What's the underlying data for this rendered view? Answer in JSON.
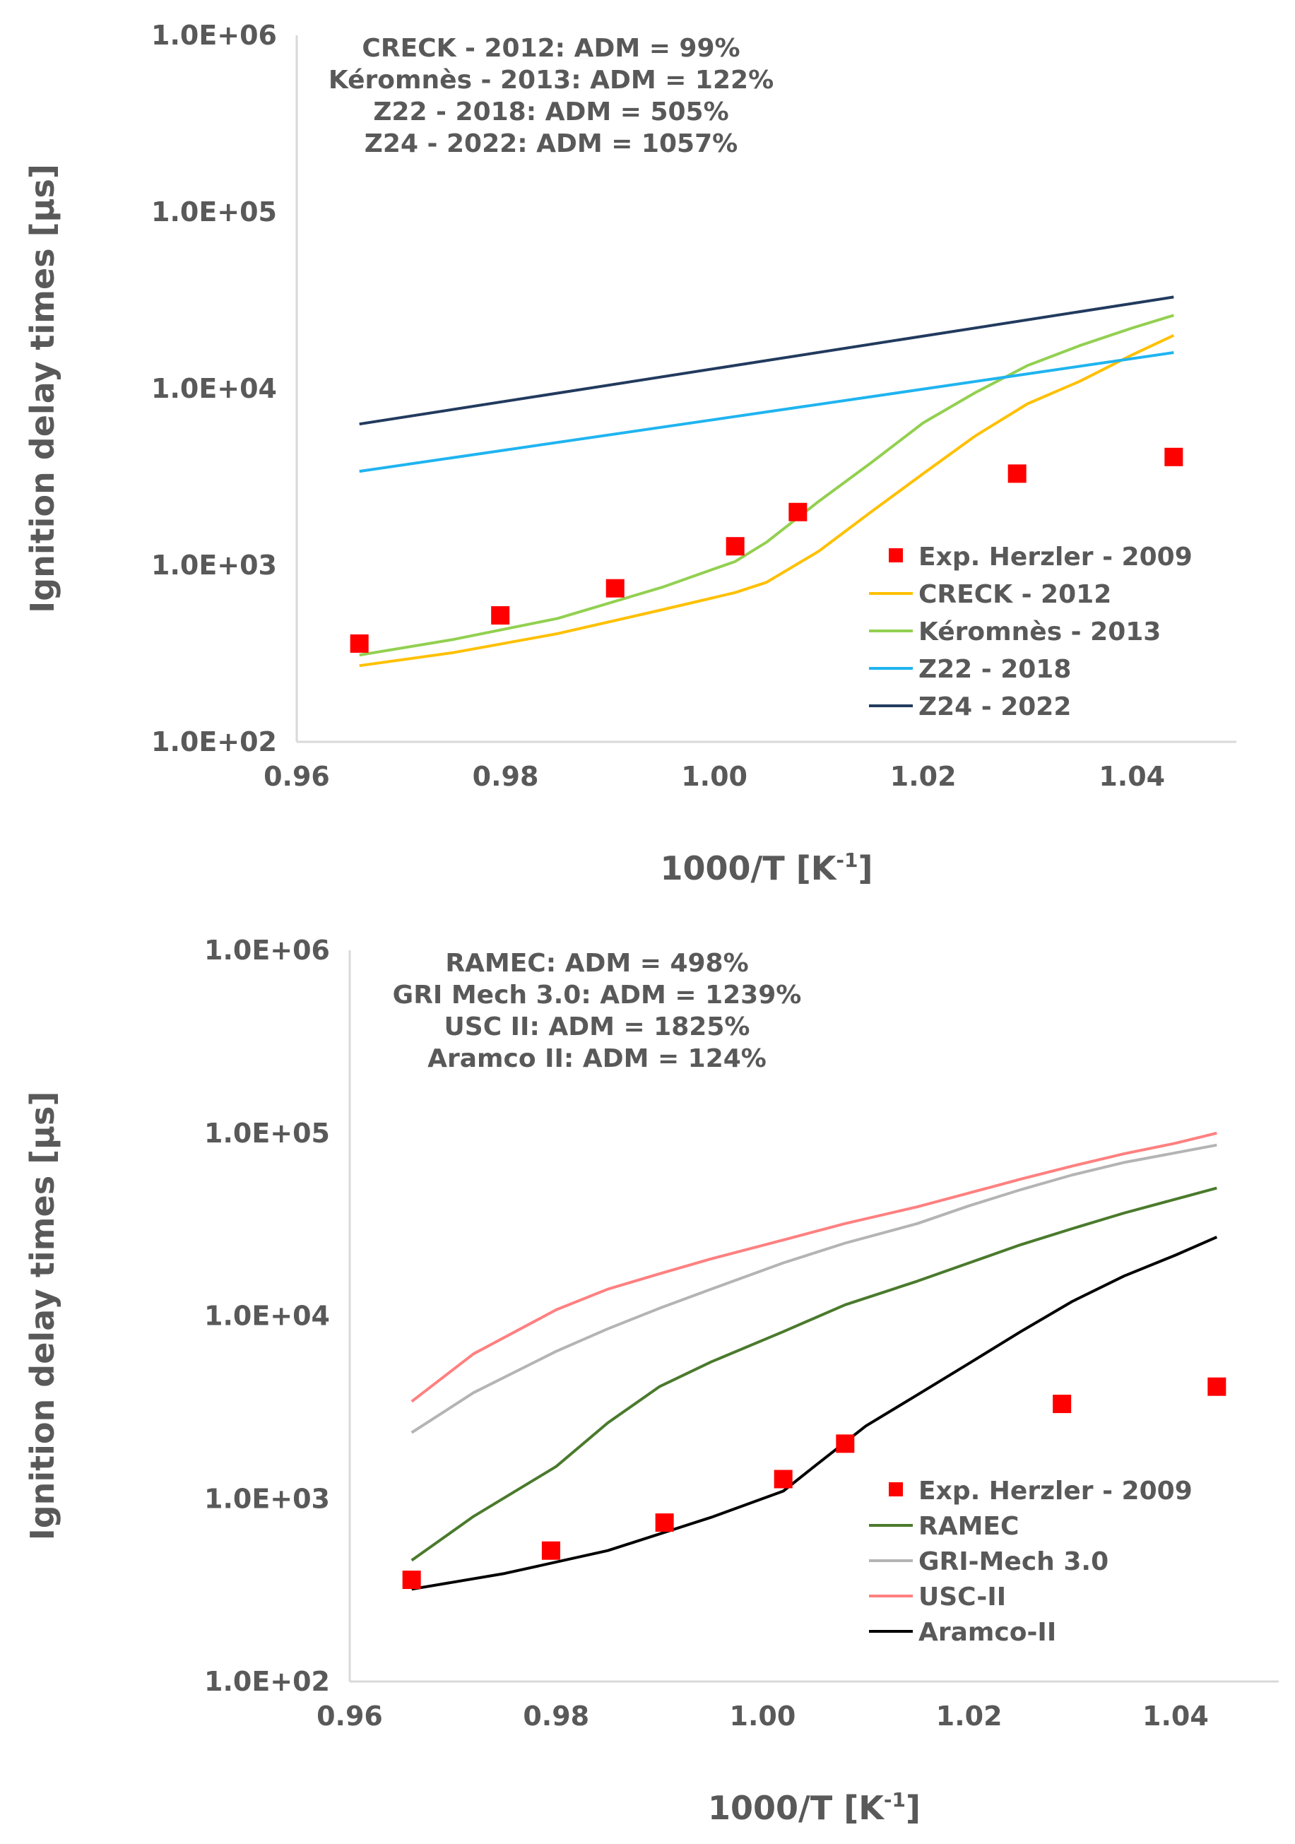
{
  "chart_data": [
    {
      "type": "line",
      "xlabel": "1000/T [K",
      "xlabel_sup": "-1",
      "xlabel_end": "]",
      "ylabel": "Ignition delay times [µs]",
      "yscale": "log",
      "xlim": [
        0.96,
        1.05
      ],
      "ylim": [
        100,
        1000000
      ],
      "xticks": [
        0.96,
        0.98,
        1.0,
        1.02,
        1.04
      ],
      "xtick_labels": [
        "0.96",
        "0.98",
        "1.00",
        "1.02",
        "1.04"
      ],
      "yticks": [
        100,
        1000,
        10000,
        100000,
        1000000
      ],
      "ytick_labels": [
        "1.0E+02",
        "1.0E+03",
        "1.0E+04",
        "1.0E+05",
        "1.0E+06"
      ],
      "annotations": [
        "CRECK - 2012: ADM = 99%",
        "Kéromnès - 2013: ADM = 122%",
        "Z22 - 2018: ADM = 505%",
        "Z24 - 2022: ADM = 1057%"
      ],
      "legend_position": "bottom-right",
      "scatter": {
        "name": "Exp. Herzler - 2009",
        "color": "#ff0000",
        "x": [
          0.966,
          0.9795,
          0.9905,
          1.002,
          1.008,
          1.029,
          1.044
        ],
        "y": [
          360,
          520,
          740,
          1280,
          2000,
          3300,
          4100
        ]
      },
      "series": [
        {
          "name": "CRECK - 2012",
          "color": "#ffc000",
          "x": [
            0.966,
            0.975,
            0.985,
            0.995,
            1.002,
            1.005,
            1.01,
            1.015,
            1.02,
            1.025,
            1.03,
            1.035,
            1.04,
            1.044
          ],
          "y": [
            270,
            320,
            410,
            560,
            700,
            800,
            1200,
            2000,
            3300,
            5400,
            8200,
            11000,
            15500,
            20000
          ]
        },
        {
          "name": "Kéromnès - 2013",
          "color": "#92d050",
          "x": [
            0.966,
            0.975,
            0.985,
            0.995,
            1.002,
            1.005,
            1.01,
            1.015,
            1.02,
            1.025,
            1.03,
            1.035,
            1.04,
            1.044
          ],
          "y": [
            310,
            380,
            500,
            750,
            1050,
            1350,
            2300,
            3800,
            6400,
            9500,
            13500,
            17500,
            22000,
            26000
          ]
        },
        {
          "name": "Z22 - 2018",
          "color": "#1fb4f0",
          "x": [
            0.966,
            1.044
          ],
          "y": [
            3400,
            16000
          ]
        },
        {
          "name": "Z24 - 2022",
          "color": "#223a5e",
          "x": [
            0.966,
            1.044
          ],
          "y": [
            6300,
            33000
          ]
        }
      ]
    },
    {
      "type": "line",
      "xlabel": "1000/T [K",
      "xlabel_sup": "-1",
      "xlabel_end": "]",
      "ylabel": "Ignition delay times [µs]",
      "yscale": "log",
      "xlim": [
        0.96,
        1.05
      ],
      "ylim": [
        100,
        1000000
      ],
      "xticks": [
        0.96,
        0.98,
        1.0,
        1.02,
        1.04
      ],
      "xtick_labels": [
        "0.96",
        "0.98",
        "1.00",
        "1.02",
        "1.04"
      ],
      "yticks": [
        100,
        1000,
        10000,
        100000,
        1000000
      ],
      "ytick_labels": [
        "1.0E+02",
        "1.0E+03",
        "1.0E+04",
        "1.0E+05",
        "1.0E+06"
      ],
      "annotations": [
        "RAMEC: ADM = 498%",
        "GRI Mech 3.0: ADM = 1239%",
        "USC II: ADM = 1825%",
        "Aramco II: ADM = 124%"
      ],
      "legend_position": "bottom-right",
      "scatter": {
        "name": "Exp. Herzler - 2009",
        "color": "#ff0000",
        "x": [
          0.966,
          0.9795,
          0.9905,
          1.002,
          1.008,
          1.029,
          1.044
        ],
        "y": [
          360,
          520,
          740,
          1280,
          2000,
          3300,
          4100
        ]
      },
      "series": [
        {
          "name": "RAMEC",
          "color": "#4a7a2c",
          "x": [
            0.966,
            0.972,
            0.98,
            0.985,
            0.99,
            0.995,
            1.002,
            1.008,
            1.015,
            1.02,
            1.025,
            1.03,
            1.035,
            1.04,
            1.044
          ],
          "y": [
            460,
            800,
            1500,
            2600,
            4100,
            5600,
            8200,
            11500,
            15500,
            19500,
            24500,
            30000,
            36500,
            43500,
            50000
          ]
        },
        {
          "name": "GRI-Mech 3.0",
          "color": "#b4b4b4",
          "x": [
            0.966,
            0.972,
            0.98,
            0.985,
            0.99,
            0.995,
            1.002,
            1.008,
            1.015,
            1.02,
            1.025,
            1.03,
            1.035,
            1.04,
            1.044
          ],
          "y": [
            2300,
            3800,
            6400,
            8500,
            11000,
            14000,
            19500,
            25000,
            32000,
            40000,
            49000,
            59000,
            69000,
            78000,
            86000
          ]
        },
        {
          "name": "USC-II",
          "color": "#ff8080",
          "x": [
            0.966,
            0.972,
            0.98,
            0.985,
            0.99,
            0.995,
            1.002,
            1.008,
            1.015,
            1.02,
            1.025,
            1.03,
            1.035,
            1.04,
            1.044
          ],
          "y": [
            3400,
            6200,
            10800,
            14000,
            17000,
            20500,
            26000,
            32000,
            39500,
            47000,
            56000,
            66000,
            77000,
            88000,
            100000
          ]
        },
        {
          "name": "Aramco-II",
          "color": "#000000",
          "x": [
            0.966,
            0.975,
            0.985,
            0.995,
            1.002,
            1.005,
            1.01,
            1.015,
            1.02,
            1.025,
            1.03,
            1.035,
            1.04,
            1.044
          ],
          "y": [
            320,
            390,
            520,
            790,
            1100,
            1500,
            2500,
            3700,
            5500,
            8200,
            12000,
            16500,
            21500,
            27000
          ]
        }
      ]
    }
  ]
}
